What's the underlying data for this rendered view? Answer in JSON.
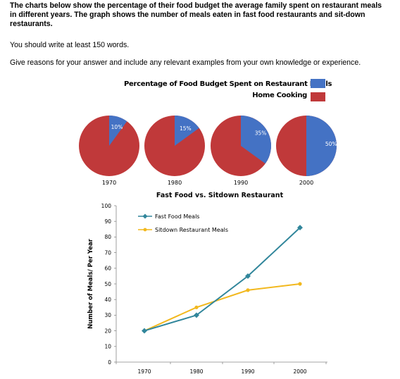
{
  "prompt": {
    "task": "The charts below show the percentage of their food budget the average family spent on restaurant meals in different years. The graph shows the number of meals eaten in fast food restaurants and sit-down restaurants.",
    "words": "You should write at least 150 words.",
    "reasons": "Give reasons for your answer and include any relevant examples from your own knowledge or experience."
  },
  "chart_data": [
    {
      "type": "pie",
      "title": "Percentage of Food Budget Spent on Restaurant Meals",
      "legend": [
        {
          "name": "Percentage of Food Budget Spent on Restaurant Meals",
          "color": "#4472c4"
        },
        {
          "name": "Home Cooking",
          "color": "#c0393a"
        }
      ],
      "pies": [
        {
          "label": "1970",
          "restaurant": 10,
          "home": 90,
          "value_label": "10%"
        },
        {
          "label": "1980",
          "restaurant": 15,
          "home": 85,
          "value_label": "15%"
        },
        {
          "label": "1990",
          "restaurant": 35,
          "home": 65,
          "value_label": "35%"
        },
        {
          "label": "2000",
          "restaurant": 50,
          "home": 50,
          "value_label": "50%"
        }
      ],
      "colors": {
        "restaurant": "#4472c4",
        "home": "#c0393a"
      }
    },
    {
      "type": "line",
      "title": "Fast Food vs. Sitdown Restaurant",
      "ylabel": "Number of Meals/ Per Year",
      "xlabel": "",
      "categories": [
        "1970",
        "1980",
        "1990",
        "2000"
      ],
      "ylim": [
        0,
        100
      ],
      "yticks": [
        0,
        10,
        20,
        30,
        40,
        50,
        60,
        70,
        80,
        90,
        100
      ],
      "legend_position": "top-left",
      "series": [
        {
          "name": "Fast Food Meals",
          "values": [
            20,
            30,
            55,
            86
          ],
          "color": "#31869b"
        },
        {
          "name": "Sitdown Restaurant Meals",
          "values": [
            20,
            35,
            46,
            50
          ],
          "color": "#f2b81e"
        }
      ]
    }
  ]
}
